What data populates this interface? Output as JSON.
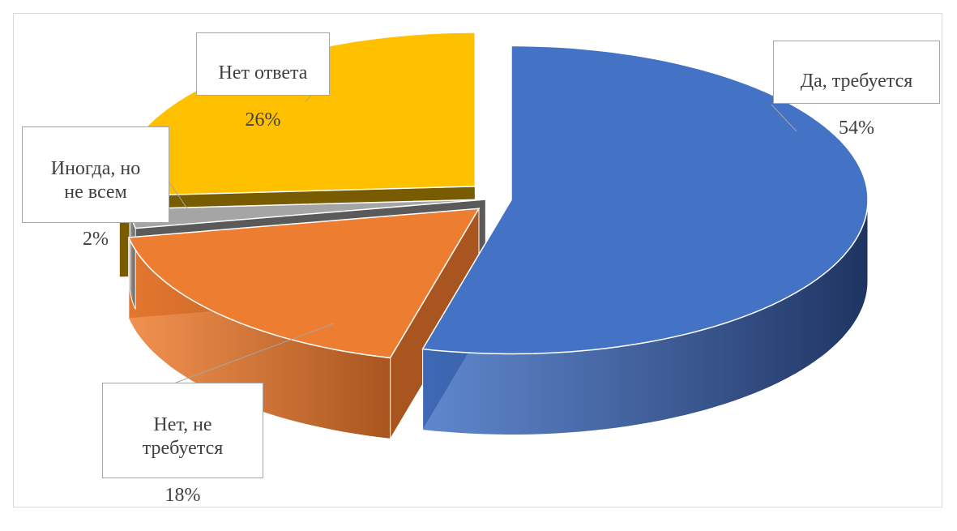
{
  "chart_data": {
    "type": "pie",
    "title": "",
    "three_d": true,
    "exploded": true,
    "slices": [
      {
        "label": "Да, требуется",
        "value": 54,
        "value_label": "54%",
        "color": "#4472c4",
        "side_color": "#1f3461"
      },
      {
        "label": "Нет, не требуется",
        "value": 18,
        "value_label": "18%",
        "color": "#ed7d31",
        "side_color": "#a8551f"
      },
      {
        "label": "Иногда, но не всем",
        "value": 2,
        "value_label": "2%",
        "color": "#a5a5a5",
        "side_color": "#5a5a5a"
      },
      {
        "label": "Нет ответа",
        "value": 26,
        "value_label": "26%",
        "color": "#ffc000",
        "side_color": "#7a5c00"
      }
    ]
  }
}
